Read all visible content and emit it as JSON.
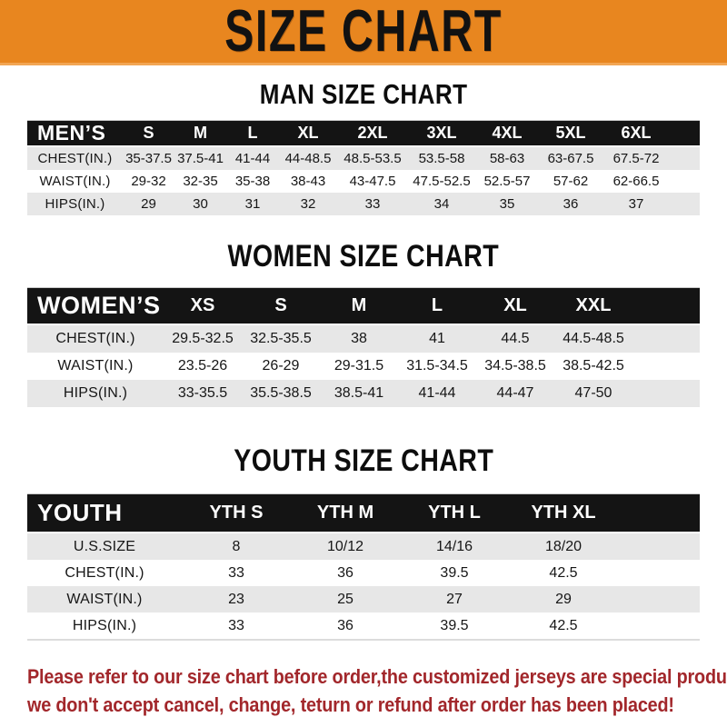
{
  "banner": {
    "title": "SIZE CHART"
  },
  "sections": [
    {
      "heading": "MAN SIZE CHART",
      "table": {
        "label": "MEN’S",
        "columns": [
          "S",
          "M",
          "L",
          "XL",
          "2XL",
          "3XL",
          "4XL",
          "5XL",
          "6XL"
        ],
        "rows": [
          {
            "label": "CHEST(IN.)",
            "values": [
              "35-37.5",
              "37.5-41",
              "41-44",
              "44-48.5",
              "48.5-53.5",
              "53.5-58",
              "58-63",
              "63-67.5",
              "67.5-72"
            ]
          },
          {
            "label": "WAIST(IN.)",
            "values": [
              "29-32",
              "32-35",
              "35-38",
              "38-43",
              "43-47.5",
              "47.5-52.5",
              "52.5-57",
              "57-62",
              "62-66.5"
            ]
          },
          {
            "label": "HIPS(IN.)",
            "values": [
              "29",
              "30",
              "31",
              "32",
              "33",
              "34",
              "35",
              "36",
              "37"
            ]
          }
        ]
      }
    },
    {
      "heading": "WOMEN SIZE CHART",
      "table": {
        "label": "WOMEN’S",
        "columns": [
          "XS",
          "S",
          "M",
          "L",
          "XL",
          "XXL"
        ],
        "rows": [
          {
            "label": "CHEST(IN.)",
            "values": [
              "29.5-32.5",
              "32.5-35.5",
              "38",
              "41",
              "44.5",
              "44.5-48.5"
            ]
          },
          {
            "label": "WAIST(IN.)",
            "values": [
              "23.5-26",
              "26-29",
              "29-31.5",
              "31.5-34.5",
              "34.5-38.5",
              "38.5-42.5"
            ]
          },
          {
            "label": "HIPS(IN.)",
            "values": [
              "33-35.5",
              "35.5-38.5",
              "38.5-41",
              "41-44",
              "44-47",
              "47-50"
            ]
          }
        ]
      }
    },
    {
      "heading": "YOUTH SIZE CHART",
      "table": {
        "label": "YOUTH",
        "columns": [
          "YTH S",
          "YTH M",
          "YTH L",
          "YTH XL"
        ],
        "rows": [
          {
            "label": "U.S.SIZE",
            "values": [
              "8",
              "10/12",
              "14/16",
              "18/20"
            ]
          },
          {
            "label": "CHEST(IN.)",
            "values": [
              "33",
              "36",
              "39.5",
              "42.5"
            ]
          },
          {
            "label": "WAIST(IN.)",
            "values": [
              "23",
              "25",
              "27",
              "29"
            ]
          },
          {
            "label": "HIPS(IN.)",
            "values": [
              "33",
              "36",
              "39.5",
              "42.5"
            ]
          }
        ]
      }
    }
  ],
  "footer": {
    "line1": "Please refer to our size chart before order,the customized jerseys are special products,",
    "line2": "we don't accept cancel, change, teturn or refund after order has been placed!"
  },
  "colors": {
    "banner_orange": "#E8861F",
    "banner_underline": "#F2A654",
    "header_bar_black": "#141414",
    "row_gray": "#E7E7E7",
    "note_red": "#A2272B"
  }
}
